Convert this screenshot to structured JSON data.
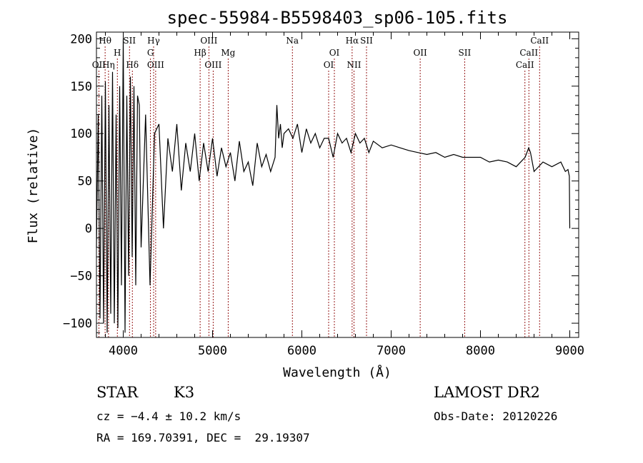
{
  "chart_data": {
    "type": "line",
    "title": "spec-55984-B5598403_sp06-105.fits",
    "xlabel": "Wavelength (Å)",
    "ylabel": "Flux (relative)",
    "xlim": [
      3700,
      9100
    ],
    "ylim": [
      -115,
      207
    ],
    "xticks": [
      4000,
      5000,
      6000,
      7000,
      8000,
      9000
    ],
    "yticks": [
      -100,
      -50,
      0,
      50,
      100,
      150,
      200
    ],
    "grid": false,
    "series": [
      {
        "x": [
          3700,
          3720,
          3740,
          3760,
          3780,
          3800,
          3820,
          3840,
          3860,
          3880,
          3900,
          3920,
          3940,
          3960,
          3980,
          4000,
          4020,
          4040,
          4060,
          4080,
          4100,
          4120,
          4140,
          4160,
          4180,
          4200,
          4250,
          4300,
          4350,
          4400,
          4450,
          4500,
          4550,
          4600,
          4650,
          4700,
          4750,
          4800,
          4850,
          4900,
          4950,
          5000,
          5050,
          5100,
          5150,
          5200,
          5250,
          5300,
          5350,
          5400,
          5450,
          5500,
          5550,
          5600,
          5650,
          5700,
          5720,
          5740,
          5760,
          5780,
          5800,
          5850,
          5900,
          5950,
          6000,
          6050,
          6100,
          6150,
          6200,
          6250,
          6300,
          6350,
          6400,
          6450,
          6500,
          6550,
          6600,
          6650,
          6700,
          6750,
          6800,
          6900,
          7000,
          7100,
          7200,
          7300,
          7400,
          7500,
          7600,
          7700,
          7800,
          7900,
          8000,
          8100,
          8200,
          8300,
          8400,
          8500,
          8540,
          8560,
          8600,
          8700,
          8800,
          8900,
          8950,
          8980,
          8995,
          9000
        ],
        "y": [
          -20,
          120,
          -95,
          140,
          -100,
          155,
          -110,
          130,
          -90,
          165,
          -100,
          120,
          -105,
          150,
          -60,
          200,
          -110,
          140,
          -50,
          160,
          -30,
          150,
          -60,
          140,
          130,
          -20,
          120,
          -60,
          100,
          110,
          0,
          95,
          60,
          110,
          40,
          90,
          60,
          100,
          50,
          90,
          60,
          95,
          55,
          85,
          65,
          80,
          50,
          92,
          60,
          70,
          45,
          90,
          65,
          78,
          60,
          75,
          130,
          95,
          110,
          85,
          100,
          105,
          95,
          110,
          80,
          105,
          90,
          100,
          85,
          95,
          95,
          75,
          100,
          90,
          95,
          80,
          100,
          90,
          95,
          80,
          92,
          85,
          88,
          85,
          82,
          80,
          78,
          80,
          75,
          78,
          75,
          75,
          75,
          70,
          72,
          70,
          65,
          75,
          85,
          80,
          60,
          70,
          65,
          70,
          60,
          62,
          55,
          0
        ]
      }
    ],
    "line_markers": [
      {
        "name": "Hθ",
        "x": 3797,
        "row": 1
      },
      {
        "name": "Hη",
        "x": 3835,
        "row": 3
      },
      {
        "name": "OII",
        "x": 3727,
        "row": 3
      },
      {
        "name": "H",
        "x": 3934,
        "row": 2
      },
      {
        "name": "SII",
        "x": 4070,
        "row": 1
      },
      {
        "name": "Hδ",
        "x": 4102,
        "row": 3
      },
      {
        "name": "Hγ",
        "x": 4340,
        "row": 1
      },
      {
        "name": "G",
        "x": 4305,
        "row": 2
      },
      {
        "name": "OIII",
        "x": 4363,
        "row": 3
      },
      {
        "name": "OIII",
        "x": 4959,
        "row": 1
      },
      {
        "name": "Hβ",
        "x": 4861,
        "row": 2
      },
      {
        "name": "OIII",
        "x": 5007,
        "row": 3
      },
      {
        "name": "Mg",
        "x": 5175,
        "row": 2
      },
      {
        "name": "Na",
        "x": 5894,
        "row": 1
      },
      {
        "name": "OI",
        "x": 6364,
        "row": 2
      },
      {
        "name": "OI",
        "x": 6300,
        "row": 3
      },
      {
        "name": "Hα",
        "x": 6563,
        "row": 1
      },
      {
        "name": "SII",
        "x": 6724,
        "row": 1
      },
      {
        "name": "NII",
        "x": 6584,
        "row": 3
      },
      {
        "name": "OII",
        "x": 7325,
        "row": 2
      },
      {
        "name": "SII",
        "x": 7823,
        "row": 2
      },
      {
        "name": "CaII",
        "x": 8542,
        "row": 2
      },
      {
        "name": "CaII",
        "x": 8498,
        "row": 3
      },
      {
        "name": "CaII",
        "x": 8662,
        "row": 1
      }
    ]
  },
  "info": {
    "object_class": "STAR",
    "subclass": "K3",
    "survey": "LAMOST DR2",
    "cz": "cz = −4.4 ± 10.2 km/s",
    "obs_date": "Obs-Date: 20120226",
    "coords": "RA = 169.70391, DEC =  29.19307"
  }
}
